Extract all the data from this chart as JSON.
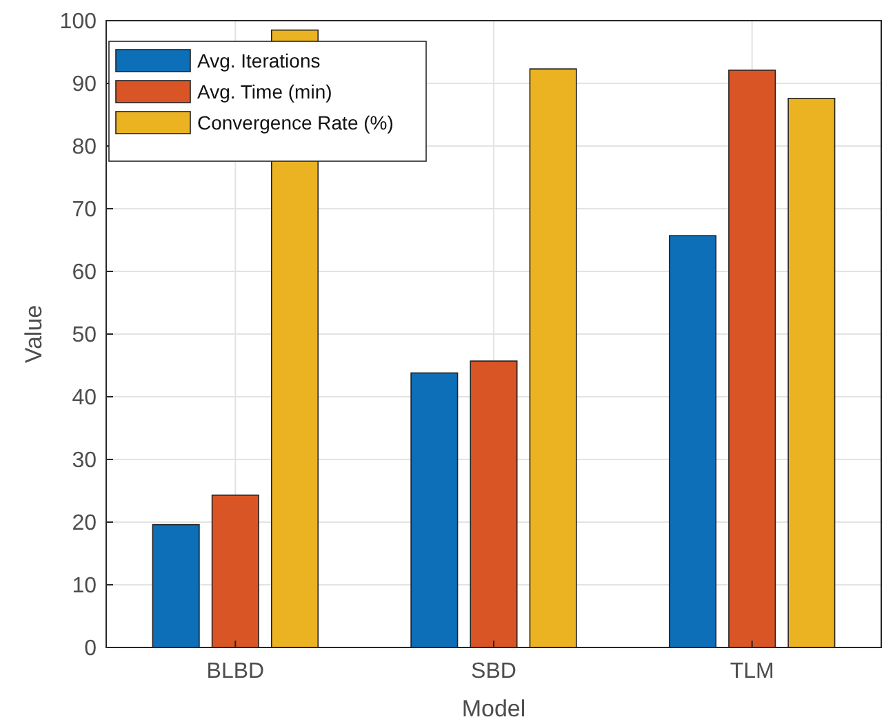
{
  "chart_data": {
    "type": "bar",
    "xlabel": "Model",
    "ylabel": "Value",
    "categories": [
      "BLBD",
      "SBD",
      "TLM"
    ],
    "series": [
      {
        "name": "Avg. Iterations",
        "color": "#0d6fb8",
        "values": [
          19.6,
          43.8,
          65.7
        ]
      },
      {
        "name": "Avg. Time (min)",
        "color": "#d95525",
        "values": [
          24.3,
          45.7,
          92.1
        ]
      },
      {
        "name": "Convergence Rate (%)",
        "color": "#ebb222",
        "values": [
          98.5,
          92.3,
          87.6
        ]
      }
    ],
    "ylim": [
      0,
      100
    ],
    "yticks": [
      0,
      10,
      20,
      30,
      40,
      50,
      60,
      70,
      80,
      90,
      100
    ],
    "grid": true,
    "legend": "top left"
  }
}
